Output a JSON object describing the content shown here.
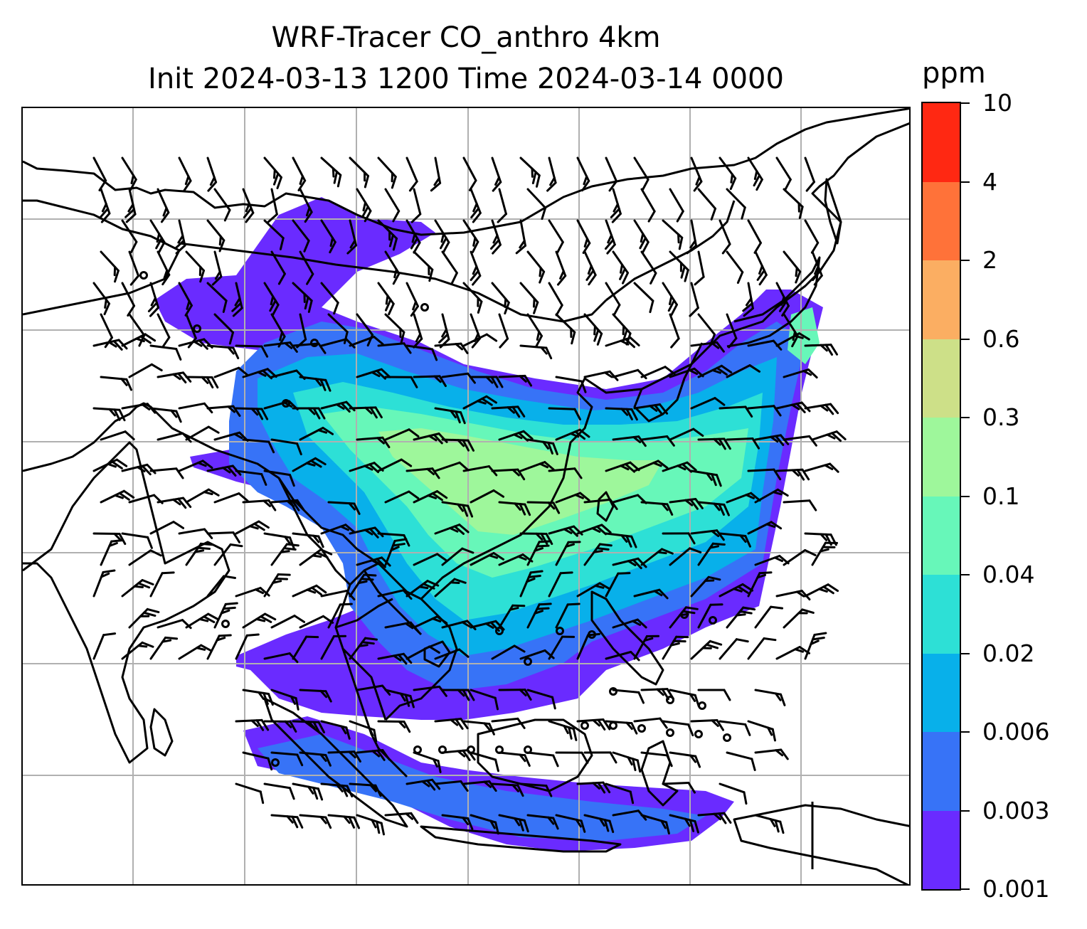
{
  "title_line1": "WRF-Tracer CO_anthro 4km",
  "title_line2": "Init 2024-03-13 1200 Time 2024-03-14 0000",
  "colorbar": {
    "unit": "ppm",
    "tick_labels": [
      "0.001",
      "0.003",
      "0.006",
      "0.02",
      "0.04",
      "0.1",
      "0.3",
      "0.6",
      "2",
      "4",
      "10"
    ],
    "colors": [
      "#6a2bff",
      "#3773f7",
      "#08b0ea",
      "#2de0d6",
      "#67f7b9",
      "#9ef79b",
      "#cde088",
      "#fbae62",
      "#ff7239",
      "#ff2812"
    ]
  },
  "map": {
    "variable": "CO_anthro",
    "units": "ppm",
    "gridlines": true,
    "features": [
      "coastlines",
      "country borders",
      "wind barbs",
      "calm wind circles"
    ]
  }
}
